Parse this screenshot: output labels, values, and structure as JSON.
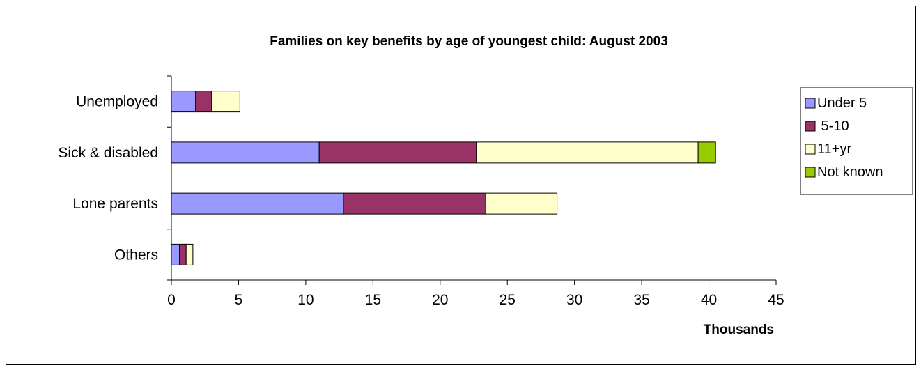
{
  "chart_data": {
    "type": "bar",
    "orientation": "horizontal",
    "stacked": true,
    "title": "Families on key benefits by age of youngest child: August 2003",
    "xlabel": "Thousands",
    "ylabel": "",
    "xlim": [
      0,
      45
    ],
    "x_ticks": [
      "0",
      "5",
      "10",
      "15",
      "20",
      "25",
      "30",
      "35",
      "40",
      "45"
    ],
    "categories": [
      "Unemployed",
      "Sick & disabled",
      "Lone parents",
      "Others"
    ],
    "series": [
      {
        "name": "Under 5",
        "color": "#9999ff",
        "values": [
          1.8,
          11.0,
          12.8,
          0.6
        ]
      },
      {
        "name": " 5-10",
        "color": "#993366",
        "values": [
          1.2,
          11.7,
          10.6,
          0.5
        ]
      },
      {
        "name": "11+yr",
        "color": "#ffffcc",
        "values": [
          2.1,
          16.5,
          5.3,
          0.5
        ]
      },
      {
        "name": "Not known",
        "color": "#99cc00",
        "values": [
          0,
          1.3,
          0,
          0
        ]
      }
    ],
    "grid": false,
    "legend_position": "right"
  }
}
